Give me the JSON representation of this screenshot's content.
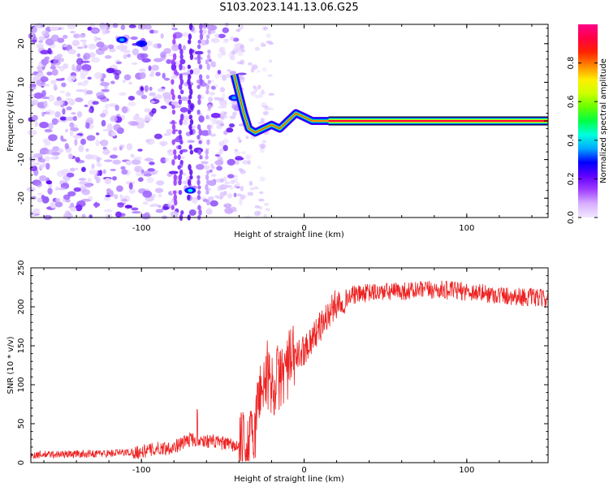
{
  "title": "S103.2023.141.13.06.G25",
  "chart_data": [
    {
      "type": "heatmap",
      "xlabel": "Height of straight line (km)",
      "ylabel": "Frequency (Hz)",
      "xlim": [
        -168,
        150
      ],
      "ylim": [
        -25,
        25
      ],
      "xticks": [
        -100,
        0,
        100
      ],
      "yticks": [
        20,
        10,
        0,
        -10,
        -20
      ],
      "colorbar": {
        "label": "Normalized spectral amplitude",
        "ticks": [
          0.0,
          0.2,
          0.4,
          0.6,
          0.8
        ],
        "range": [
          0,
          1
        ],
        "colormap": [
          "#f2e8ff",
          "#d8b0ff",
          "#a040ff",
          "#6000ff",
          "#0000ff",
          "#00aaff",
          "#00ffdd",
          "#00ff44",
          "#66ff00",
          "#ccff00",
          "#ffee00",
          "#ff8800",
          "#ff2200",
          "#ff0044",
          "#ff0088"
        ]
      },
      "ridge_track": {
        "description_points_km_hz": [
          [
            -43,
            12
          ],
          [
            -40,
            7
          ],
          [
            -37,
            2
          ],
          [
            -34,
            -2
          ],
          [
            -30,
            -3
          ],
          [
            -25,
            -2
          ],
          [
            -20,
            -1
          ],
          [
            -15,
            -2
          ],
          [
            -10,
            0
          ],
          [
            -5,
            2
          ],
          [
            0,
            1
          ],
          [
            5,
            0
          ],
          [
            10,
            0
          ],
          [
            15,
            0
          ],
          [
            150,
            0
          ]
        ]
      }
    },
    {
      "type": "line",
      "xlabel": "Height of straight line (km)",
      "ylabel": "SNR (10 * v/v)",
      "xlim": [
        -168,
        150
      ],
      "ylim": [
        0,
        250
      ],
      "xticks": [
        -100,
        0,
        100
      ],
      "yticks": [
        250,
        200,
        150,
        100,
        50,
        0
      ],
      "color": "#ee2222",
      "envelope": {
        "x": [
          -168,
          -120,
          -100,
          -90,
          -80,
          -75,
          -70,
          -60,
          -50,
          -40,
          -34,
          -30,
          -27,
          -22,
          -20,
          -15,
          -10,
          -5,
          0,
          5,
          10,
          15,
          20,
          30,
          40,
          60,
          80,
          100,
          120,
          140,
          150
        ],
        "y": [
          10,
          12,
          14,
          18,
          20,
          25,
          30,
          28,
          25,
          20,
          20,
          45,
          100,
          100,
          100,
          110,
          125,
          135,
          145,
          160,
          175,
          190,
          205,
          215,
          218,
          220,
          222,
          220,
          215,
          212,
          210
        ]
      }
    }
  ]
}
